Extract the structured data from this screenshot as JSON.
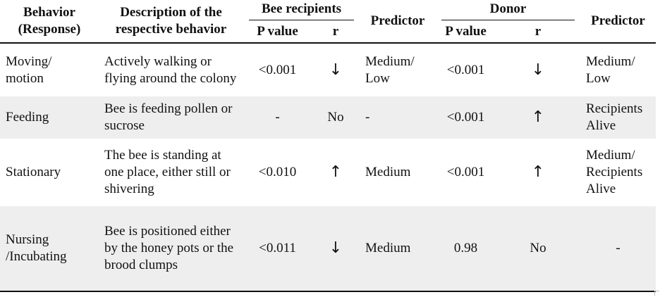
{
  "header": {
    "behavior": "Behavior (Response)",
    "description": "Description of the respective behavior",
    "bee_recipients": "Bee recipients",
    "bee_p_value": "P value",
    "bee_r": "r",
    "predictor_1": "Predictor",
    "donor": "Donor",
    "donor_p_value": "P value",
    "donor_r": "r",
    "predictor_2": "Predictor"
  },
  "rows": [
    {
      "behavior": "Moving/ motion",
      "description": "Actively walking or flying around the colony",
      "bee_p": "<0.001",
      "bee_r": "↓",
      "predictor_1": "Medium/ Low",
      "donor_p": "<0.001",
      "donor_r": "↓",
      "predictor_2": "Medium/ Low"
    },
    {
      "behavior": "Feeding",
      "description": "Bee is feeding pollen or sucrose",
      "bee_p": "-",
      "bee_r": "No",
      "predictor_1": "-",
      "donor_p": "<0.001",
      "donor_r": "↑",
      "predictor_2": "Recipients Alive"
    },
    {
      "behavior": "Stationary",
      "description": "The bee is standing at one place, either still or shivering",
      "bee_p": "<0.010",
      "bee_r": "↑",
      "predictor_1": "Medium",
      "donor_p": "<0.001",
      "donor_r": "↑",
      "predictor_2": "Medium/ Recipients Alive"
    },
    {
      "behavior": "Nursing /Incubating",
      "description": "Bee is positioned either by the honey pots or the brood clumps",
      "bee_p": "<0.011",
      "bee_r": "↓",
      "predictor_1": "Medium",
      "donor_p": "0.98",
      "donor_r": "No",
      "predictor_2": "-"
    }
  ]
}
